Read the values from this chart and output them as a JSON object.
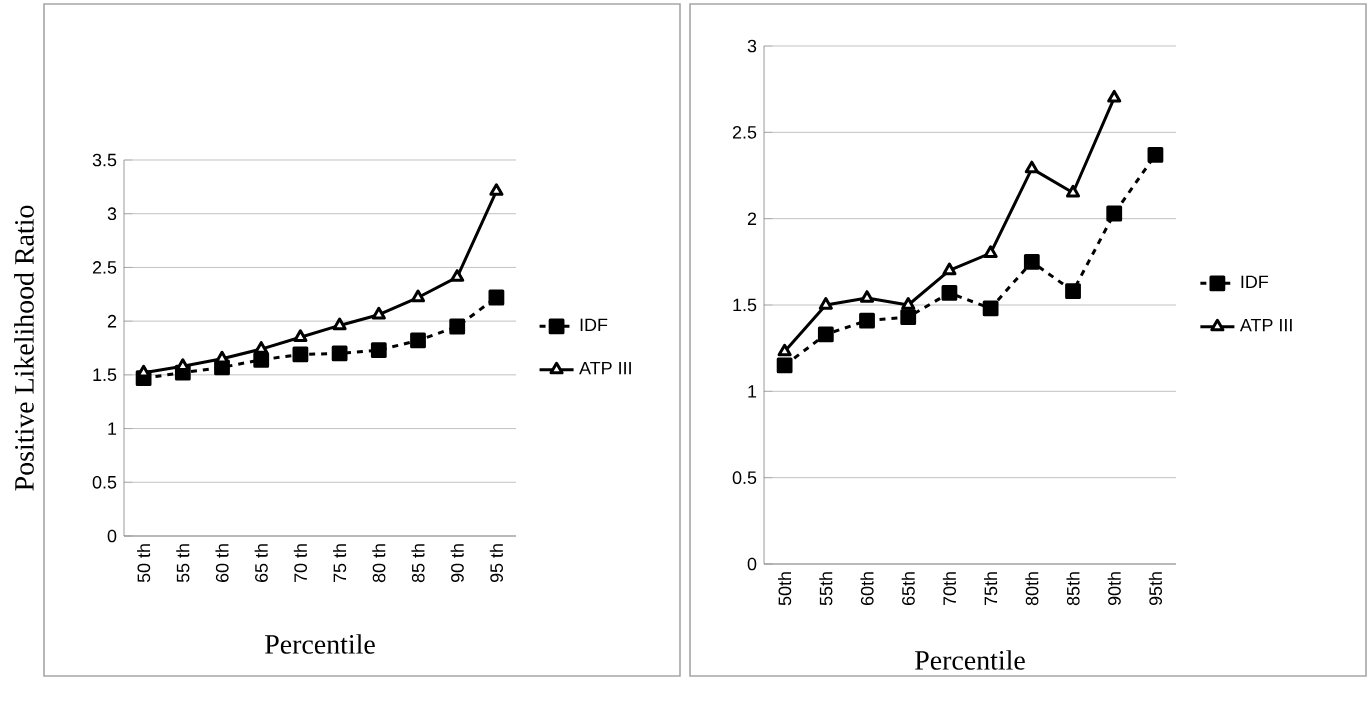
{
  "chart_data": [
    {
      "type": "line",
      "ylabel": "Positive Likelihood Ratio",
      "xlabel": "Percentile",
      "categories": [
        "50 th",
        "55 th",
        "60 th",
        "65 th",
        "70 th",
        "75 th",
        "80 th",
        "85 th",
        "90 th",
        "95 th"
      ],
      "series": [
        {
          "name": "IDF",
          "color": "#000000",
          "marker": "square",
          "line_style": "dashed",
          "values": [
            1.47,
            1.52,
            1.57,
            1.64,
            1.69,
            1.7,
            1.73,
            1.82,
            1.95,
            2.22
          ]
        },
        {
          "name": "ATP III",
          "color": "#000000",
          "marker": "triangle",
          "line_style": "solid",
          "values": [
            1.52,
            1.58,
            1.65,
            1.74,
            1.85,
            1.96,
            2.06,
            2.22,
            2.41,
            3.21
          ]
        }
      ],
      "ylim": [
        0,
        3.5
      ],
      "yticks": [
        0,
        0.5,
        1,
        1.5,
        2,
        2.5,
        3,
        3.5
      ],
      "grid": "y",
      "legend": "right"
    },
    {
      "type": "line",
      "xlabel": "Percentile",
      "categories": [
        "50th",
        "55th",
        "60th",
        "65th",
        "70th",
        "75th",
        "80th",
        "85th",
        "90th",
        "95th"
      ],
      "series": [
        {
          "name": "IDF",
          "color": "#000000",
          "marker": "square",
          "line_style": "dashed",
          "values": [
            1.15,
            1.33,
            1.41,
            1.43,
            1.57,
            1.48,
            1.75,
            1.58,
            2.03,
            2.37
          ]
        },
        {
          "name": "ATP III",
          "color": "#000000",
          "marker": "triangle",
          "line_style": "solid",
          "values": [
            1.23,
            1.5,
            1.54,
            1.5,
            1.7,
            1.8,
            2.29,
            2.15,
            2.7,
            null
          ]
        }
      ],
      "ylim": [
        0,
        3
      ],
      "yticks": [
        0,
        0.5,
        1,
        1.5,
        2,
        2.5,
        3
      ],
      "grid": "y",
      "legend": "right"
    }
  ]
}
